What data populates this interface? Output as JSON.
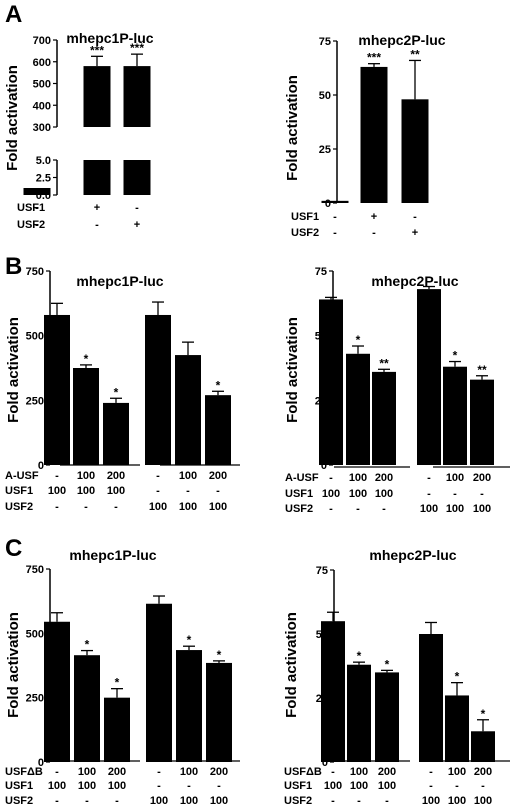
{
  "figure": {
    "charts": [
      {
        "panel": "A",
        "title": "mhepc1P-luc"
      },
      {
        "panel": "",
        "title": "mhepc2P-luc"
      },
      {
        "panel": "B",
        "title": "mhepc1P-luc"
      },
      {
        "panel": "",
        "title": "mhepc2P-luc"
      },
      {
        "panel": "C",
        "title": "mhepc1P-luc"
      },
      {
        "panel": "",
        "title": "mhepc2P-luc"
      }
    ]
  },
  "chart_data": [
    {
      "type": "bar",
      "panel": "A",
      "title": "mhepc1P-luc",
      "ylabel": "Fold activation",
      "y_axis_break": true,
      "ylim_lower": [
        0,
        5
      ],
      "ylim_upper": [
        300,
        700
      ],
      "yticks_lower": [
        "0.0",
        "2.5",
        "5.0"
      ],
      "yticks_upper": [
        "300",
        "400",
        "500",
        "600",
        "700"
      ],
      "values": [
        1.0,
        580,
        580
      ],
      "errors": [
        0.1,
        45,
        55
      ],
      "stars": [
        "",
        "***",
        "***"
      ],
      "conditions": [
        {
          "label": "USF1",
          "values": [
            "-",
            "+",
            "-"
          ]
        },
        {
          "label": "USF2",
          "values": [
            "-",
            "-",
            "+"
          ]
        }
      ]
    },
    {
      "type": "bar",
      "panel": "",
      "title": "mhepc2P-luc",
      "ylabel": "Fold activation",
      "ylim": [
        0,
        75
      ],
      "yticks": [
        "0",
        "25",
        "50",
        "75"
      ],
      "values": [
        1.0,
        63,
        48
      ],
      "errors": [
        0.2,
        1.5,
        18
      ],
      "stars": [
        "",
        "***",
        "**"
      ],
      "conditions": [
        {
          "label": "USF1",
          "values": [
            "-",
            "+",
            "-"
          ]
        },
        {
          "label": "USF2",
          "values": [
            "-",
            "-",
            "+"
          ]
        }
      ]
    },
    {
      "type": "bar",
      "panel": "B",
      "title": "mhepc1P-luc",
      "ylabel": "Fold activation",
      "ylim": [
        0,
        750
      ],
      "yticks": [
        "0",
        "250",
        "500",
        "750"
      ],
      "values": [
        580,
        375,
        240,
        580,
        425,
        270
      ],
      "errors": [
        45,
        12,
        18,
        50,
        50,
        15
      ],
      "stars": [
        "",
        "*",
        "*",
        "",
        "",
        "*"
      ],
      "conditions": [
        {
          "label": "A-USF",
          "values": [
            "-",
            "100",
            "200",
            "-",
            "100",
            "200"
          ],
          "line": true
        },
        {
          "label": "USF1",
          "values": [
            "100",
            "100",
            "100",
            "-",
            "-",
            "-"
          ]
        },
        {
          "label": "USF2",
          "values": [
            "-",
            "-",
            "-",
            "100",
            "100",
            "100"
          ]
        }
      ]
    },
    {
      "type": "bar",
      "panel": "",
      "title": "mhepc2P-luc",
      "ylabel": "Fold activation",
      "ylim": [
        0,
        75
      ],
      "yticks": [
        "0",
        "25",
        "50",
        "75"
      ],
      "values": [
        64,
        43,
        36,
        68,
        38,
        33
      ],
      "errors": [
        0.8,
        3,
        1,
        1,
        2,
        1.5
      ],
      "stars": [
        "",
        "*",
        "**",
        "",
        "*",
        "**"
      ],
      "conditions": [
        {
          "label": "A-USF",
          "values": [
            "-",
            "100",
            "200",
            "-",
            "100",
            "200"
          ],
          "line": true
        },
        {
          "label": "USF1",
          "values": [
            "100",
            "100",
            "100",
            "-",
            "-",
            "-"
          ]
        },
        {
          "label": "USF2",
          "values": [
            "-",
            "-",
            "-",
            "100",
            "100",
            "100"
          ]
        }
      ]
    },
    {
      "type": "bar",
      "panel": "C",
      "title": "mhepc1P-luc",
      "ylabel": "Fold activation",
      "ylim": [
        0,
        750
      ],
      "yticks": [
        "0",
        "250",
        "500",
        "750"
      ],
      "values": [
        545,
        415,
        250,
        615,
        435,
        385
      ],
      "errors": [
        35,
        18,
        35,
        30,
        15,
        8
      ],
      "stars": [
        "",
        "*",
        "*",
        "",
        "*",
        "*"
      ],
      "conditions": [
        {
          "label": "USFΔB",
          "values": [
            "-",
            "100",
            "200",
            "-",
            "100",
            "200"
          ],
          "line": true
        },
        {
          "label": "USF1",
          "values": [
            "100",
            "100",
            "100",
            "-",
            "-",
            "-"
          ]
        },
        {
          "label": "USF2",
          "values": [
            "-",
            "-",
            "-",
            "100",
            "100",
            "100"
          ]
        }
      ]
    },
    {
      "type": "bar",
      "panel": "",
      "title": "mhepc2P-luc",
      "ylabel": "Fold activation",
      "ylim": [
        0,
        75
      ],
      "yticks": [
        "0",
        "25",
        "50",
        "75"
      ],
      "values": [
        55,
        38,
        35,
        50,
        26,
        12
      ],
      "errors": [
        3.5,
        1,
        0.8,
        4.5,
        5,
        4.5
      ],
      "stars": [
        "",
        "*",
        "*",
        "",
        "*",
        "*"
      ],
      "conditions": [
        {
          "label": "USFΔB",
          "values": [
            "-",
            "100",
            "200",
            "-",
            "100",
            "200"
          ],
          "line": true
        },
        {
          "label": "USF1",
          "values": [
            "100",
            "100",
            "100",
            "-",
            "-",
            "-"
          ]
        },
        {
          "label": "USF2",
          "values": [
            "-",
            "-",
            "-",
            "100",
            "100",
            "100"
          ]
        }
      ]
    }
  ]
}
